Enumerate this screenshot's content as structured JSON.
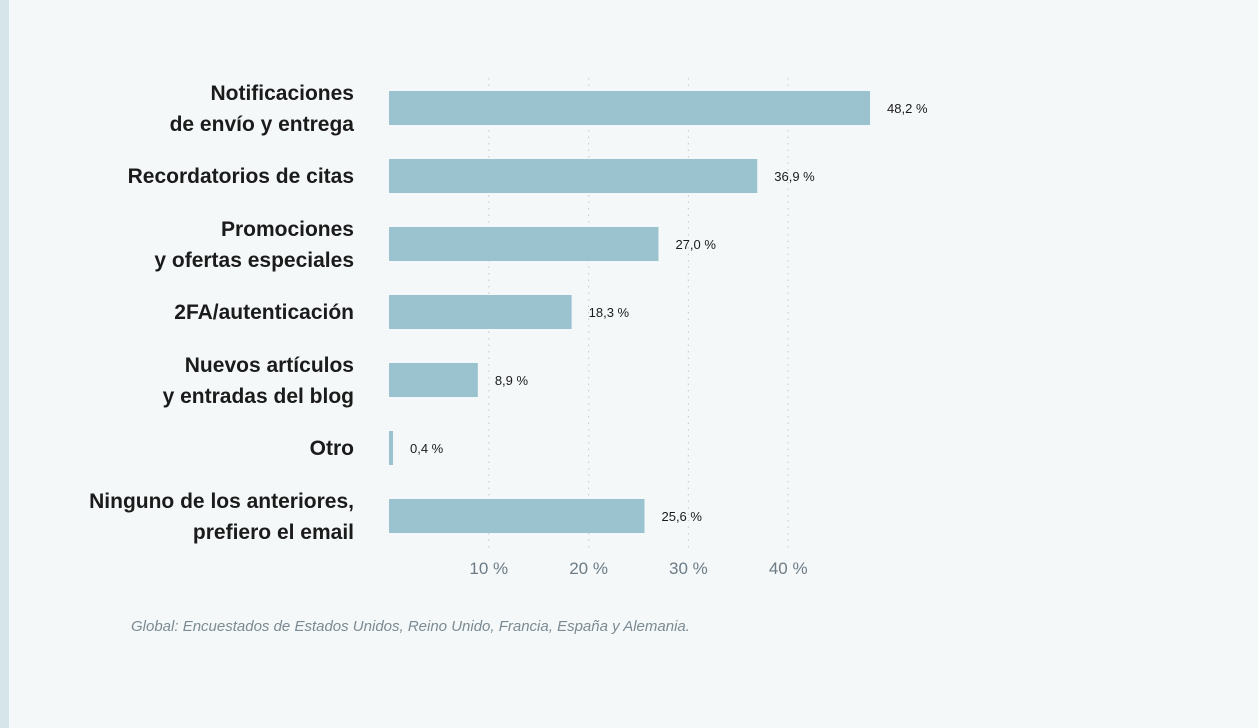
{
  "chart_data": {
    "type": "bar",
    "orientation": "horizontal",
    "categories": [
      [
        "Notificaciones",
        "de envío y entrega"
      ],
      [
        "Recordatorios de citas"
      ],
      [
        "Promociones",
        "y ofertas especiales"
      ],
      [
        "2FA/autenticación"
      ],
      [
        "Nuevos artículos",
        "y entradas del blog"
      ],
      [
        "Otro"
      ],
      [
        "Ninguno de los anteriores,",
        "prefiero el email"
      ]
    ],
    "values": [
      48.2,
      36.9,
      27.0,
      18.3,
      8.9,
      0.4,
      25.6
    ],
    "value_labels": [
      "48,2 %",
      "36,9 %",
      "27,0 %",
      "18,3 %",
      "8,9 %",
      "0,4 %",
      "25,6 %"
    ],
    "xticks": [
      10,
      20,
      30,
      40
    ],
    "xtick_labels": [
      "10 %",
      "20 %",
      "30 %",
      "40 %"
    ],
    "xlim": [
      0,
      50
    ],
    "grid": "vertical-dotted",
    "bar_color": "#9ac3cf",
    "footnote": "Global: Encuestados de Estados Unidos, Reino Unido, Francia, España y Alemania."
  }
}
